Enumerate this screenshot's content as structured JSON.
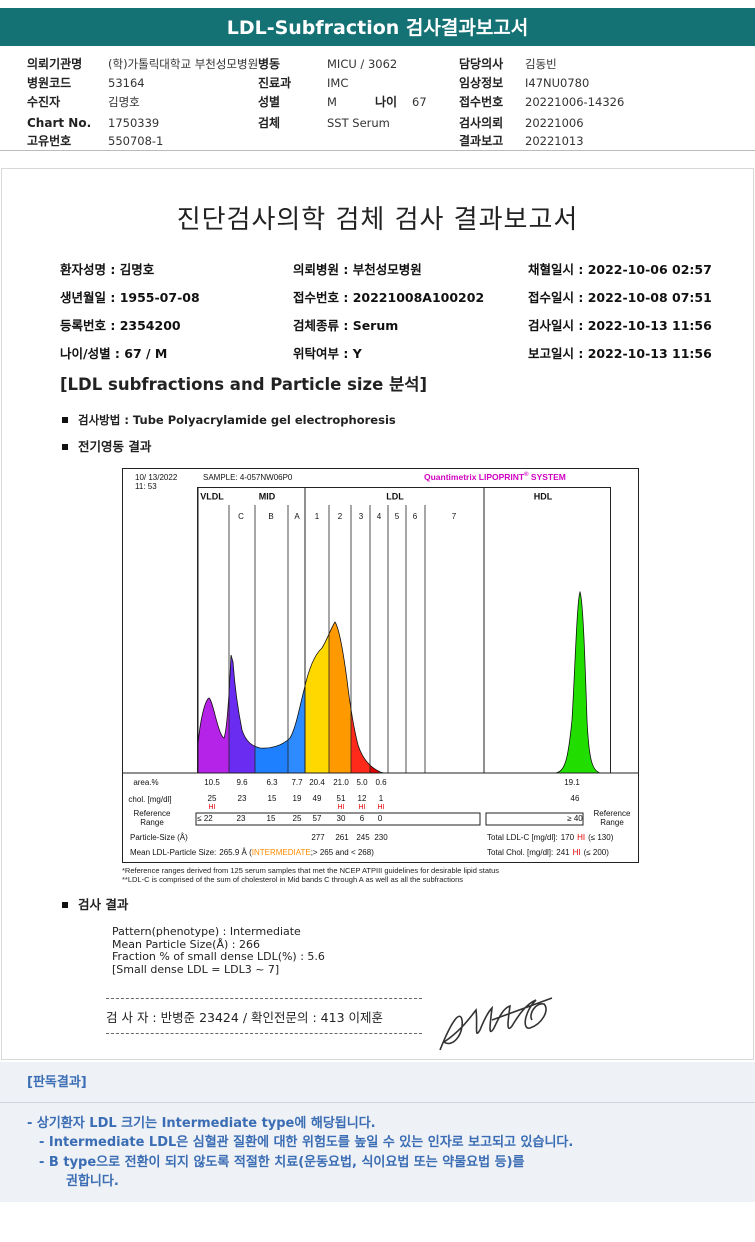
{
  "header": {
    "title": "LDL-Subfraction 검사결과보고서"
  },
  "info": {
    "col1": [
      {
        "label": "의뢰기관명",
        "value": "(학)가톨릭대학교 부천성모병원"
      },
      {
        "label": "병원코드",
        "value": "53164"
      },
      {
        "label": "수진자",
        "value": "김명호"
      },
      {
        "label": "Chart No.",
        "value": "1750339"
      },
      {
        "label": "고유번호",
        "value": "550708-1"
      }
    ],
    "col2": [
      {
        "label": "병동",
        "value": "MICU / 3062"
      },
      {
        "label": "진료과",
        "value": "IMC"
      },
      {
        "label": "성별",
        "value": "M",
        "label2": "나이",
        "value2": "67"
      },
      {
        "label": "검체",
        "value": "SST Serum"
      }
    ],
    "col3": [
      {
        "label": "담당의사",
        "value": "김동빈"
      },
      {
        "label": "임상정보",
        "value": "I47NU0780"
      },
      {
        "label": "접수번호",
        "value": "20221006-14326"
      },
      {
        "label": "검사의뢰",
        "value": "20221006"
      },
      {
        "label": "결과보고",
        "value": "20221013"
      }
    ]
  },
  "report": {
    "title": "진단검사의학 검체 검사 결과보고서",
    "patient": [
      "환자성명 : 김명호",
      "의뢰병원 : 부천성모병원",
      "채혈일시 : 2022-10-06 02:57",
      "생년월일 : 1955-07-08",
      "접수번호 : 20221008A100202",
      "접수일시 : 2022-10-08 07:51",
      "등록번호 : 2354200",
      "검체종류 : Serum",
      "검사일시 : 2022-10-13 11:56",
      "나이/성별 : 67 / M",
      "위탁여부 : Y",
      "보고일시 : 2022-10-13 11:56"
    ],
    "section": "[LDL subfractions and Particle size 분석]",
    "method": "검사방법 : Tube Polyacrylamide gel electrophoresis",
    "electro_heading": "전기영동 결과"
  },
  "electrophoresis": {
    "datetime": [
      "10/ 13/2022",
      "11: 53"
    ],
    "sample": "SAMPLE:  4-057NW06P0",
    "brand": [
      "Quantimetrix LIPOPRINT",
      "®",
      " SYSTEM"
    ],
    "groups": [
      "VLDL",
      "MID",
      "LDL",
      "HDL"
    ],
    "subbands": [
      "C",
      "B",
      "A",
      "1",
      "2",
      "3",
      "4",
      "5",
      "6",
      "7"
    ],
    "area": {
      "label": "area.%",
      "values": [
        "10.5",
        "9.6",
        "6.3",
        "7.7",
        "20.4",
        "21.0",
        "5.0",
        "0.6"
      ],
      "hdl": "19.1"
    },
    "chol": {
      "label": "chol. [mg/dl]",
      "values": [
        "25",
        "23",
        "15",
        "19",
        "49",
        "51",
        "12",
        "1"
      ],
      "flags": [
        "HI",
        null,
        null,
        null,
        null,
        "HI",
        "HI",
        "HI"
      ],
      "hdl": "46"
    },
    "reference": {
      "label": [
        "Reference",
        "Range"
      ],
      "values": [
        "≤ 22",
        "23",
        "15",
        "25",
        "57",
        "30",
        "6",
        "0"
      ],
      "hdl": "≥ 40",
      "right_label": [
        "Reference",
        "Range"
      ]
    },
    "particle": {
      "label": "Particle-Size (Å)",
      "values": [
        "277",
        "261",
        "245",
        "230"
      ]
    },
    "total_ldl": {
      "label": "Total LDL-C [mg/dl]:",
      "value": "170",
      "flag": "HI",
      "ref": "(≤ 130)"
    },
    "total_chol": {
      "label": "Total Chol. [mg/dl]:",
      "value": "241",
      "flag": "HI",
      "ref": "(≤ 200)"
    },
    "mean": {
      "label": "Mean LDL-Particle Size:",
      "value": "265.9 Å (",
      "class": "INTERMEDIATE",
      "range": ";> 265 and < 268)"
    },
    "footnotes": [
      "*Reference ranges derived from 125 serum samples that met the NCEP ATPIII guidelines for desirable lipid status",
      "**LDL-C is comprised of the sum of cholesterol in Mid bands C through A as well as all the subfractions"
    ]
  },
  "results": {
    "heading": "검사 결과",
    "lines": [
      "Pattern(phenotype) : Intermediate",
      "Mean Particle Size(Å) : 266",
      "Fraction % of small dense LDL(%) : 5.6",
      "[Small dense LDL = LDL3 ~ 7]"
    ]
  },
  "signature": "검 사 자 : 반병준  23424   /   확인전문의 : 413  이제훈",
  "interpretation": {
    "heading": "[판독결과]",
    "lines": [
      "- 상기환자 LDL 크기는 Intermediate type에 해당됩니다.",
      "- Intermediate LDL은 심혈관 질환에 대한 위험도를 높일 수 있는 인자로 보고되고 있습니다.",
      "- B type으로 전환이 되지 않도록 적절한 치료(운동요법, 식이요법 또는 약물요법 등)를",
      "권합니다."
    ]
  }
}
